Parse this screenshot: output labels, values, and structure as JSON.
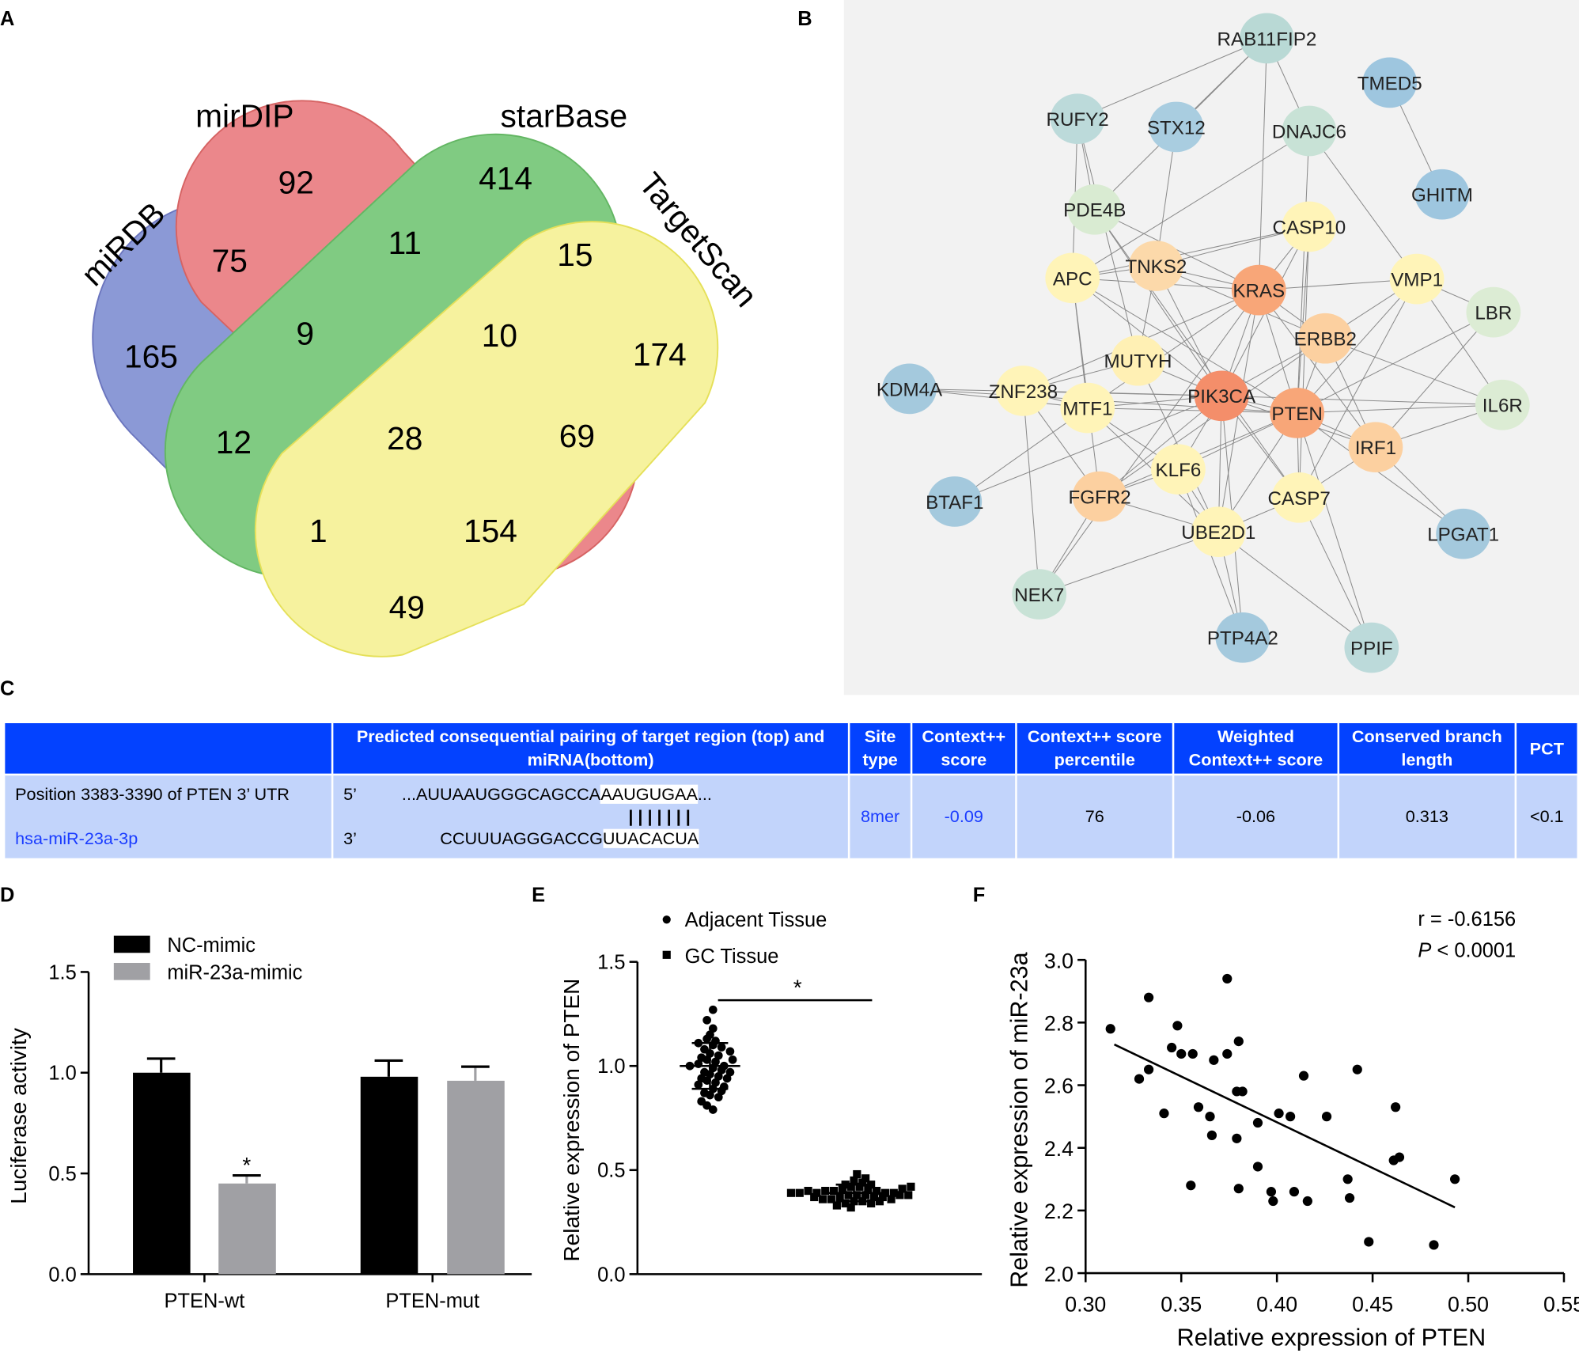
{
  "panels": {
    "a": "A",
    "b": "B",
    "c": "C",
    "d": "D",
    "e": "E",
    "f": "F"
  },
  "venn": {
    "sets": [
      {
        "name": "miRDB",
        "color": "#5068c0"
      },
      {
        "name": "mirDIP",
        "color": "#e05a5e"
      },
      {
        "name": "starBase",
        "color": "#4cb44c"
      },
      {
        "name": "TargetScan",
        "color": "#f0e860"
      }
    ],
    "counts": {
      "miRDB_only": "165",
      "mirDIP_only": "92",
      "starBase_only": "414",
      "TargetScan_only": "174",
      "miRDB_mirDIP": "75",
      "mirDIP_starBase": "11",
      "starBase_TargetScan": "15",
      "miRDB_mirDIP_starBase": "9",
      "mirDIP_starBase_TargetScan": "10",
      "miRDB_starBase": "12",
      "all": "28",
      "mirDIP_TargetScan": "69",
      "miRDB_starBase_TargetScan": "1",
      "miRDB_mirDIP_TargetScan": "154",
      "miRDB_TargetScan": "49"
    }
  },
  "network": {
    "nodes": [
      {
        "name": "RAB11FIP2",
        "color": "#b9d9d5"
      },
      {
        "name": "TMED5",
        "color": "#9ec6df"
      },
      {
        "name": "RUFY2",
        "color": "#bcdada"
      },
      {
        "name": "STX12",
        "color": "#a9cde0"
      },
      {
        "name": "DNAJC6",
        "color": "#c8e2d6"
      },
      {
        "name": "GHITM",
        "color": "#9ec6df"
      },
      {
        "name": "PDE4B",
        "color": "#d9ebd2"
      },
      {
        "name": "CASP10",
        "color": "#fff4b8"
      },
      {
        "name": "APC",
        "color": "#fff4b8"
      },
      {
        "name": "TNKS2",
        "color": "#fcd9aa"
      },
      {
        "name": "KRAS",
        "color": "#f8a678"
      },
      {
        "name": "VMP1",
        "color": "#fff4b8"
      },
      {
        "name": "LBR",
        "color": "#dcecd4"
      },
      {
        "name": "ERBB2",
        "color": "#fcd0a0"
      },
      {
        "name": "MUTYH",
        "color": "#fff0b4"
      },
      {
        "name": "KDM4A",
        "color": "#a4c9dd"
      },
      {
        "name": "ZNF238",
        "color": "#fff4b8"
      },
      {
        "name": "MTF1",
        "color": "#fff4b8"
      },
      {
        "name": "PIK3CA",
        "color": "#f48e6a"
      },
      {
        "name": "PTEN",
        "color": "#f8a678"
      },
      {
        "name": "IL6R",
        "color": "#dcecd4"
      },
      {
        "name": "IRF1",
        "color": "#fcd0a0"
      },
      {
        "name": "KLF6",
        "color": "#fff4b8"
      },
      {
        "name": "BTAF1",
        "color": "#a4c9dd"
      },
      {
        "name": "FGFR2",
        "color": "#fcd0a0"
      },
      {
        "name": "CASP7",
        "color": "#fff4b8"
      },
      {
        "name": "UBE2D1",
        "color": "#fff4b8"
      },
      {
        "name": "LPGAT1",
        "color": "#a4c9dd"
      },
      {
        "name": "NEK7",
        "color": "#c8e2d6"
      },
      {
        "name": "PTP4A2",
        "color": "#a4c9dd"
      },
      {
        "name": "PPIF",
        "color": "#bcdada"
      }
    ],
    "edges": [
      [
        "RAB11FIP2",
        "RUFY2"
      ],
      [
        "RAB11FIP2",
        "STX12"
      ],
      [
        "RAB11FIP2",
        "PDE4B"
      ],
      [
        "RAB11FIP2",
        "KRAS"
      ],
      [
        "RAB11FIP2",
        "DNAJC6"
      ],
      [
        "TMED5",
        "GHITM"
      ],
      [
        "RUFY2",
        "PDE4B"
      ],
      [
        "RUFY2",
        "APC"
      ],
      [
        "RUFY2",
        "MUTYH"
      ],
      [
        "STX12",
        "TNKS2"
      ],
      [
        "DNAJC6",
        "VMP1"
      ],
      [
        "DNAJC6",
        "APC"
      ],
      [
        "DNAJC6",
        "PTEN"
      ],
      [
        "PDE4B",
        "PIK3CA"
      ],
      [
        "PDE4B",
        "KRAS"
      ],
      [
        "CASP10",
        "KRAS"
      ],
      [
        "CASP10",
        "PIK3CA"
      ],
      [
        "CASP10",
        "PTEN"
      ],
      [
        "CASP10",
        "APC"
      ],
      [
        "CASP10",
        "CASP7"
      ],
      [
        "CASP10",
        "TNKS2"
      ],
      [
        "APC",
        "KRAS"
      ],
      [
        "APC",
        "PIK3CA"
      ],
      [
        "APC",
        "PTEN"
      ],
      [
        "APC",
        "TNKS2"
      ],
      [
        "APC",
        "MTF1"
      ],
      [
        "APC",
        "FGFR2"
      ],
      [
        "TNKS2",
        "KRAS"
      ],
      [
        "TNKS2",
        "PIK3CA"
      ],
      [
        "TNKS2",
        "ERBB2"
      ],
      [
        "TNKS2",
        "MUTYH"
      ],
      [
        "KRAS",
        "PIK3CA"
      ],
      [
        "KRAS",
        "PTEN"
      ],
      [
        "KRAS",
        "ERBB2"
      ],
      [
        "KRAS",
        "VMP1"
      ],
      [
        "KRAS",
        "MTF1"
      ],
      [
        "KRAS",
        "IRF1"
      ],
      [
        "KRAS",
        "UBE2D1"
      ],
      [
        "VMP1",
        "PTEN"
      ],
      [
        "VMP1",
        "ERBB2"
      ],
      [
        "VMP1",
        "LBR"
      ],
      [
        "VMP1",
        "IL6R"
      ],
      [
        "VMP1",
        "CASP7"
      ],
      [
        "LBR",
        "PTEN"
      ],
      [
        "LBR",
        "IRF1"
      ],
      [
        "ERBB2",
        "PIK3CA"
      ],
      [
        "ERBB2",
        "PTEN"
      ],
      [
        "ERBB2",
        "IRF1"
      ],
      [
        "ERBB2",
        "IL6R"
      ],
      [
        "ERBB2",
        "FGFR2"
      ],
      [
        "MUTYH",
        "PIK3CA"
      ],
      [
        "MUTYH",
        "ZNF238"
      ],
      [
        "MUTYH",
        "UBE2D1"
      ],
      [
        "KDM4A",
        "PIK3CA"
      ],
      [
        "KDM4A",
        "MTF1"
      ],
      [
        "KDM4A",
        "PTEN"
      ],
      [
        "ZNF238",
        "PIK3CA"
      ],
      [
        "ZNF238",
        "MTF1"
      ],
      [
        "ZNF238",
        "KRAS"
      ],
      [
        "ZNF238",
        "FGFR2"
      ],
      [
        "MTF1",
        "PIK3CA"
      ],
      [
        "MTF1",
        "PTEN"
      ],
      [
        "MTF1",
        "KLF6"
      ],
      [
        "MTF1",
        "UBE2D1"
      ],
      [
        "PIK3CA",
        "PTEN"
      ],
      [
        "PIK3CA",
        "KLF6"
      ],
      [
        "PIK3CA",
        "FGFR2"
      ],
      [
        "PIK3CA",
        "CASP7"
      ],
      [
        "PIK3CA",
        "UBE2D1"
      ],
      [
        "PIK3CA",
        "IRF1"
      ],
      [
        "PIK3CA",
        "IL6R"
      ],
      [
        "PIK3CA",
        "PTP4A2"
      ],
      [
        "PTEN",
        "IRF1"
      ],
      [
        "PTEN",
        "CASP7"
      ],
      [
        "PTEN",
        "KLF6"
      ],
      [
        "PTEN",
        "UBE2D1"
      ],
      [
        "PTEN",
        "IL6R"
      ],
      [
        "PTEN",
        "LPGAT1"
      ],
      [
        "PTEN",
        "FGFR2"
      ],
      [
        "PTEN",
        "PPIF"
      ],
      [
        "IRF1",
        "CASP7"
      ],
      [
        "IRF1",
        "IL6R"
      ],
      [
        "IRF1",
        "LPGAT1"
      ],
      [
        "KLF6",
        "FGFR2"
      ],
      [
        "KLF6",
        "UBE2D1"
      ],
      [
        "BTAF1",
        "PIK3CA"
      ],
      [
        "BTAF1",
        "MTF1"
      ],
      [
        "FGFR2",
        "NEK7"
      ],
      [
        "FGFR2",
        "UBE2D1"
      ],
      [
        "CASP7",
        "UBE2D1"
      ],
      [
        "CASP7",
        "PPIF"
      ],
      [
        "UBE2D1",
        "NEK7"
      ],
      [
        "UBE2D1",
        "PTP4A2"
      ],
      [
        "NEK7",
        "ZNF238"
      ],
      [
        "NEK7",
        "KRAS"
      ],
      [
        "PTP4A2",
        "KLF6"
      ],
      [
        "PPIF",
        "UBE2D1"
      ],
      [
        "PDE4B",
        "CASP7"
      ]
    ]
  },
  "table": {
    "headers": [
      "",
      "Predicted consequential pairing of target region (top) and miRNA(bottom)",
      "Site type",
      "Context++ score",
      "Context++ score percentile",
      "Weighted Context++ score",
      "Conserved branch length",
      "PCT"
    ],
    "row": {
      "position": "Position 3383-3390 of PTEN 3’ UTR",
      "mirna": "hsa-miR-23a-3p",
      "top_end": "5’",
      "top_seq": "...AUUAAUGGGCAGCCA",
      "top_match": "AAUGUGAA",
      "top_tail": "...",
      "pairs": "| | | | | | |",
      "bottom_end": "3’",
      "bottom_seq": "CCUUUAGGGACCG",
      "bottom_match": "UUACACUA",
      "site_type": "8mer",
      "context_score": "-0.09",
      "percentile": "76",
      "weighted": "-0.06",
      "branch_length": "0.313",
      "pct": "<0.1"
    }
  },
  "chart_data": [
    {
      "type": "bar",
      "id": "D",
      "categories": [
        "PTEN-wt",
        "PTEN-mut"
      ],
      "series": [
        {
          "name": "NC-mimic",
          "color": "#000000",
          "values": [
            1.0,
            0.98
          ],
          "errors": [
            0.07,
            0.08
          ]
        },
        {
          "name": "miR-23a-mimic",
          "color": "#a0a0a4",
          "values": [
            0.45,
            0.96
          ],
          "errors": [
            0.04,
            0.07
          ]
        }
      ],
      "ylabel": "Luciferase activity",
      "ylim": [
        0,
        1.5
      ],
      "yticks": [
        "0.0",
        "0.5",
        "1.0",
        "1.5"
      ],
      "annotations": [
        "*"
      ],
      "legend": "top-left"
    },
    {
      "type": "scatter",
      "id": "E",
      "categories": [
        "Adjacent Tissue",
        "GC Tissue"
      ],
      "ylabel": "Relative expression of PTEN",
      "ylim": [
        0,
        1.5
      ],
      "yticks": [
        "0.0",
        "0.5",
        "1.0",
        "1.5"
      ],
      "significance": "*",
      "legend": "top-left",
      "series": [
        {
          "name": "Adjacent Tissue",
          "mean": 1.0,
          "sd": 0.11,
          "values": [
            1.27,
            1.22,
            1.18,
            1.15,
            1.13,
            1.12,
            1.1,
            1.09,
            1.08,
            1.07,
            1.06,
            1.05,
            1.04,
            1.03,
            1.02,
            1.01,
            1.0,
            1.0,
            0.99,
            0.98,
            0.97,
            0.96,
            0.95,
            0.94,
            0.93,
            0.92,
            0.91,
            0.9,
            0.89,
            0.88,
            0.87,
            0.86,
            0.85,
            0.83,
            0.81,
            0.79,
            1.11,
            0.97,
            1.03,
            0.94
          ]
        },
        {
          "name": "GC Tissue",
          "mean": 0.39,
          "sd": 0.04,
          "values": [
            0.48,
            0.46,
            0.45,
            0.44,
            0.43,
            0.42,
            0.42,
            0.41,
            0.41,
            0.4,
            0.4,
            0.4,
            0.39,
            0.39,
            0.39,
            0.38,
            0.38,
            0.38,
            0.37,
            0.37,
            0.37,
            0.36,
            0.36,
            0.35,
            0.35,
            0.34,
            0.34,
            0.33,
            0.32,
            0.36,
            0.4,
            0.38,
            0.41,
            0.37,
            0.39,
            0.43,
            0.35,
            0.38,
            0.42,
            0.39
          ]
        }
      ]
    },
    {
      "type": "scatter",
      "id": "F",
      "xlabel": "Relative expression of PTEN",
      "ylabel": "Relative expression of miR-23a",
      "xlim": [
        0.3,
        0.55
      ],
      "ylim": [
        2.0,
        3.0
      ],
      "xticks": [
        "0.30",
        "0.35",
        "0.40",
        "0.45",
        "0.50",
        "0.55"
      ],
      "yticks": [
        "2.0",
        "2.2",
        "2.4",
        "2.6",
        "2.8",
        "3.0"
      ],
      "r_label": "r = -0.6156",
      "p_italic": "P",
      "p_label": " < 0.0001",
      "fit": {
        "x": [
          0.315,
          0.493
        ],
        "y": [
          2.73,
          2.21
        ]
      },
      "points": [
        [
          0.313,
          2.78
        ],
        [
          0.328,
          2.62
        ],
        [
          0.333,
          2.88
        ],
        [
          0.333,
          2.65
        ],
        [
          0.341,
          2.51
        ],
        [
          0.345,
          2.72
        ],
        [
          0.348,
          2.79
        ],
        [
          0.35,
          2.7
        ],
        [
          0.356,
          2.7
        ],
        [
          0.355,
          2.28
        ],
        [
          0.359,
          2.53
        ],
        [
          0.365,
          2.5
        ],
        [
          0.366,
          2.44
        ],
        [
          0.367,
          2.68
        ],
        [
          0.374,
          2.94
        ],
        [
          0.374,
          2.7
        ],
        [
          0.379,
          2.58
        ],
        [
          0.379,
          2.43
        ],
        [
          0.38,
          2.74
        ],
        [
          0.38,
          2.27
        ],
        [
          0.382,
          2.58
        ],
        [
          0.39,
          2.48
        ],
        [
          0.39,
          2.34
        ],
        [
          0.397,
          2.26
        ],
        [
          0.398,
          2.23
        ],
        [
          0.401,
          2.51
        ],
        [
          0.407,
          2.5
        ],
        [
          0.409,
          2.26
        ],
        [
          0.414,
          2.63
        ],
        [
          0.416,
          2.23
        ],
        [
          0.426,
          2.5
        ],
        [
          0.437,
          2.3
        ],
        [
          0.438,
          2.24
        ],
        [
          0.442,
          2.65
        ],
        [
          0.448,
          2.1
        ],
        [
          0.461,
          2.36
        ],
        [
          0.462,
          2.53
        ],
        [
          0.464,
          2.37
        ],
        [
          0.482,
          2.09
        ],
        [
          0.493,
          2.3
        ]
      ]
    }
  ]
}
